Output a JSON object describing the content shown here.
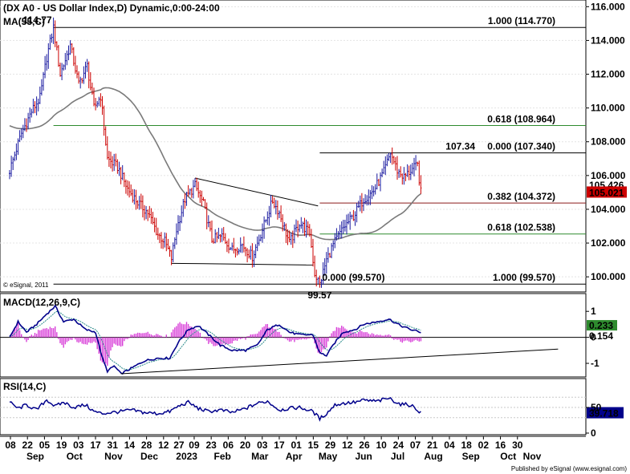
{
  "chart_data": {
    "type": "candlestick",
    "title": "(DX A0 - US Dollar Index,D) Dynamic,0:00-24:00",
    "copyright": "© eSignal, 2011",
    "publisher": "Published by eSignal (www.esignal.com)",
    "colors": {
      "up": "#1a1aa0",
      "down": "#cc0000",
      "ma": "#7a7a7a",
      "fib_green": "#2e8b2e",
      "macd": "#00008b",
      "signal": "#2a8a8a",
      "hist": "#d840d8",
      "rsi": "#00008b",
      "price_box": "#cc0000",
      "macd_box": "#2e8b2e",
      "rsi_box": "#00008b"
    },
    "price_panel": {
      "ylim": [
        99.2,
        116.3
      ],
      "yticks": [
        "100.000",
        "102.000",
        "104.000",
        "106.000",
        "108.000",
        "110.000",
        "112.000",
        "114.000",
        "116.000"
      ],
      "ma_label": "MA(55,C)",
      "last_price": "105.021",
      "last_price_behind": "105.426",
      "anchors": [
        {
          "x": 0,
          "y": 106.3
        },
        {
          "x": 7,
          "y": 108.5
        },
        {
          "x": 13,
          "y": 109.8
        },
        {
          "x": 18,
          "y": 110.6
        },
        {
          "x": 22,
          "y": 113.0
        },
        {
          "x": 26,
          "y": 114.77
        },
        {
          "x": 30,
          "y": 112.0
        },
        {
          "x": 36,
          "y": 113.7
        },
        {
          "x": 41,
          "y": 111.4
        },
        {
          "x": 46,
          "y": 112.5
        },
        {
          "x": 50,
          "y": 110.0
        },
        {
          "x": 54,
          "y": 110.7
        },
        {
          "x": 58,
          "y": 107.0
        },
        {
          "x": 64,
          "y": 106.5
        },
        {
          "x": 70,
          "y": 105.2
        },
        {
          "x": 76,
          "y": 104.4
        },
        {
          "x": 82,
          "y": 103.8
        },
        {
          "x": 88,
          "y": 102.5
        },
        {
          "x": 92,
          "y": 102.1
        },
        {
          "x": 96,
          "y": 101.1
        },
        {
          "x": 99,
          "y": 102.8
        },
        {
          "x": 104,
          "y": 104.6
        },
        {
          "x": 110,
          "y": 105.4
        },
        {
          "x": 115,
          "y": 104.3
        },
        {
          "x": 120,
          "y": 102.2
        },
        {
          "x": 126,
          "y": 102.4
        },
        {
          "x": 132,
          "y": 101.6
        },
        {
          "x": 138,
          "y": 101.9
        },
        {
          "x": 144,
          "y": 101.2
        },
        {
          "x": 150,
          "y": 102.8
        },
        {
          "x": 156,
          "y": 104.5
        },
        {
          "x": 160,
          "y": 103.8
        },
        {
          "x": 166,
          "y": 102.0
        },
        {
          "x": 172,
          "y": 103.2
        },
        {
          "x": 178,
          "y": 102.6
        },
        {
          "x": 181,
          "y": 100.2
        },
        {
          "x": 184,
          "y": 99.57
        },
        {
          "x": 188,
          "y": 101.0
        },
        {
          "x": 192,
          "y": 101.9
        },
        {
          "x": 198,
          "y": 102.9
        },
        {
          "x": 204,
          "y": 103.6
        },
        {
          "x": 210,
          "y": 104.6
        },
        {
          "x": 216,
          "y": 105.1
        },
        {
          "x": 222,
          "y": 106.2
        },
        {
          "x": 226,
          "y": 107.34
        },
        {
          "x": 230,
          "y": 106.3
        },
        {
          "x": 234,
          "y": 105.9
        },
        {
          "x": 238,
          "y": 106.3
        },
        {
          "x": 242,
          "y": 106.6
        },
        {
          "x": 244,
          "y": 105.0
        }
      ],
      "fib_levels": [
        {
          "value": 114.77,
          "label": "1.000 (114.770)",
          "color": "black",
          "from": 26
        },
        {
          "value": 108.964,
          "label": "0.618 (108.964)",
          "color": "green",
          "from": 26
        },
        {
          "value": 107.34,
          "label": "0.000 (107.340)",
          "color": "black",
          "from": 184
        },
        {
          "value": 104.372,
          "label": "0.382 (104.372)",
          "color": "darkred",
          "from": 184
        },
        {
          "value": 102.538,
          "label": "0.618 (102.538)",
          "color": "green",
          "from": 184
        },
        {
          "value": 99.57,
          "label": "1.000 (99.570)",
          "color": "black",
          "from": 26
        }
      ],
      "fib_aux_labels": [
        {
          "x": 26,
          "y": 114.77,
          "text": "114.77"
        },
        {
          "x": 184,
          "y": 99.57,
          "text": "99.57"
        },
        {
          "x": 184,
          "y": 99.57,
          "text": "0.000 (99.570)"
        },
        {
          "x": 213,
          "y": 107.34,
          "text": "107.34"
        }
      ],
      "trendlines": [
        {
          "x1": 110,
          "y1": 105.85,
          "x2": 183,
          "y2": 104.2
        },
        {
          "x1": 96,
          "y1": 100.8,
          "x2": 180,
          "y2": 100.7
        }
      ]
    },
    "macd_panel": {
      "label": "MACD(12,26,9,C)",
      "ylim": [
        -1.4,
        1.5
      ],
      "yticks": [
        "1",
        "0",
        "-1"
      ],
      "macd_value": "0.233",
      "signal_value": "0.154",
      "macd_anchors": [
        {
          "x": 0,
          "y": 0.0
        },
        {
          "x": 5,
          "y": 0.6
        },
        {
          "x": 10,
          "y": 0.2
        },
        {
          "x": 16,
          "y": 0.5
        },
        {
          "x": 22,
          "y": 0.9
        },
        {
          "x": 27,
          "y": 1.2
        },
        {
          "x": 32,
          "y": 0.6
        },
        {
          "x": 38,
          "y": 0.7
        },
        {
          "x": 45,
          "y": 0.3
        },
        {
          "x": 51,
          "y": 0.2
        },
        {
          "x": 55,
          "y": -0.8
        },
        {
          "x": 58,
          "y": -1.3
        },
        {
          "x": 62,
          "y": -1.1
        },
        {
          "x": 66,
          "y": -1.4
        },
        {
          "x": 72,
          "y": -1.2
        },
        {
          "x": 80,
          "y": -0.9
        },
        {
          "x": 88,
          "y": -0.8
        },
        {
          "x": 95,
          "y": -0.8
        },
        {
          "x": 100,
          "y": -0.2
        },
        {
          "x": 106,
          "y": 0.3
        },
        {
          "x": 112,
          "y": 0.45
        },
        {
          "x": 118,
          "y": 0.1
        },
        {
          "x": 125,
          "y": -0.3
        },
        {
          "x": 132,
          "y": -0.5
        },
        {
          "x": 140,
          "y": -0.5
        },
        {
          "x": 147,
          "y": -0.3
        },
        {
          "x": 153,
          "y": 0.3
        },
        {
          "x": 160,
          "y": 0.5
        },
        {
          "x": 166,
          "y": 0.2
        },
        {
          "x": 172,
          "y": 0.1
        },
        {
          "x": 180,
          "y": 0.1
        },
        {
          "x": 184,
          "y": -0.6
        },
        {
          "x": 188,
          "y": -0.7
        },
        {
          "x": 193,
          "y": -0.2
        },
        {
          "x": 198,
          "y": 0.2
        },
        {
          "x": 205,
          "y": 0.3
        },
        {
          "x": 210,
          "y": 0.5
        },
        {
          "x": 218,
          "y": 0.6
        },
        {
          "x": 225,
          "y": 0.7
        },
        {
          "x": 232,
          "y": 0.45
        },
        {
          "x": 238,
          "y": 0.3
        },
        {
          "x": 244,
          "y": 0.2
        }
      ],
      "trendline": {
        "x1": 66,
        "y1": -1.4,
        "x2": 254,
        "y2": -0.45
      }
    },
    "rsi_panel": {
      "label": "RSI(14,C)",
      "ylim": [
        0,
        100
      ],
      "yticks": [
        "50",
        "0"
      ],
      "rsi_value": "39.718",
      "anchors": [
        {
          "x": 0,
          "y": 60
        },
        {
          "x": 5,
          "y": 48
        },
        {
          "x": 10,
          "y": 55
        },
        {
          "x": 16,
          "y": 45
        },
        {
          "x": 22,
          "y": 65
        },
        {
          "x": 27,
          "y": 52
        },
        {
          "x": 32,
          "y": 60
        },
        {
          "x": 38,
          "y": 50
        },
        {
          "x": 45,
          "y": 55
        },
        {
          "x": 50,
          "y": 42
        },
        {
          "x": 55,
          "y": 38
        },
        {
          "x": 60,
          "y": 40
        },
        {
          "x": 66,
          "y": 42
        },
        {
          "x": 72,
          "y": 45
        },
        {
          "x": 80,
          "y": 40
        },
        {
          "x": 88,
          "y": 38
        },
        {
          "x": 95,
          "y": 42
        },
        {
          "x": 100,
          "y": 52
        },
        {
          "x": 106,
          "y": 60
        },
        {
          "x": 112,
          "y": 48
        },
        {
          "x": 118,
          "y": 42
        },
        {
          "x": 125,
          "y": 45
        },
        {
          "x": 132,
          "y": 40
        },
        {
          "x": 140,
          "y": 48
        },
        {
          "x": 147,
          "y": 58
        },
        {
          "x": 153,
          "y": 62
        },
        {
          "x": 160,
          "y": 45
        },
        {
          "x": 166,
          "y": 48
        },
        {
          "x": 172,
          "y": 50
        },
        {
          "x": 180,
          "y": 42
        },
        {
          "x": 184,
          "y": 28
        },
        {
          "x": 188,
          "y": 38
        },
        {
          "x": 193,
          "y": 55
        },
        {
          "x": 198,
          "y": 58
        },
        {
          "x": 205,
          "y": 60
        },
        {
          "x": 210,
          "y": 64
        },
        {
          "x": 218,
          "y": 62
        },
        {
          "x": 225,
          "y": 68
        },
        {
          "x": 232,
          "y": 56
        },
        {
          "x": 238,
          "y": 55
        },
        {
          "x": 244,
          "y": 40
        }
      ]
    },
    "x_axis": {
      "day_ticks": [
        {
          "x": 0,
          "label": "08"
        },
        {
          "x": 10,
          "label": "22"
        },
        {
          "x": 20,
          "label": "05"
        },
        {
          "x": 30,
          "label": "19"
        },
        {
          "x": 40,
          "label": "03"
        },
        {
          "x": 50,
          "label": "17"
        },
        {
          "x": 60,
          "label": "31"
        },
        {
          "x": 70,
          "label": "14"
        },
        {
          "x": 80,
          "label": "28"
        },
        {
          "x": 90,
          "label": "12"
        },
        {
          "x": 99,
          "label": "27"
        },
        {
          "x": 108,
          "label": "09"
        },
        {
          "x": 118,
          "label": "23"
        },
        {
          "x": 128,
          "label": "06"
        },
        {
          "x": 138,
          "label": "20"
        },
        {
          "x": 148,
          "label": "03"
        },
        {
          "x": 158,
          "label": "17"
        },
        {
          "x": 168,
          "label": "01"
        },
        {
          "x": 178,
          "label": "15"
        },
        {
          "x": 188,
          "label": "29"
        },
        {
          "x": 198,
          "label": "12"
        },
        {
          "x": 208,
          "label": "26"
        },
        {
          "x": 218,
          "label": "10"
        },
        {
          "x": 228,
          "label": "24"
        },
        {
          "x": 238,
          "label": "07"
        },
        {
          "x": 248,
          "label": "21"
        },
        {
          "x": 258,
          "label": "04"
        },
        {
          "x": 268,
          "label": "18"
        },
        {
          "x": 278,
          "label": "02"
        },
        {
          "x": 288,
          "label": "16"
        },
        {
          "x": 298,
          "label": "30"
        }
      ],
      "month_ticks": [
        {
          "x": 8,
          "label": "Sep"
        },
        {
          "x": 31,
          "label": "Oct"
        },
        {
          "x": 54,
          "label": "Nov"
        },
        {
          "x": 75,
          "label": "Dec"
        },
        {
          "x": 97,
          "label": "2023"
        },
        {
          "x": 118,
          "label": "Feb"
        },
        {
          "x": 140,
          "label": "Mar"
        },
        {
          "x": 160,
          "label": "Apr"
        },
        {
          "x": 180,
          "label": "May"
        },
        {
          "x": 201,
          "label": "Jun"
        },
        {
          "x": 221,
          "label": "Jul"
        },
        {
          "x": 242,
          "label": "Aug"
        },
        {
          "x": 264,
          "label": "Sep"
        },
        {
          "x": 286,
          "label": "Oct"
        },
        {
          "x": 300,
          "label": "Nov"
        }
      ]
    }
  }
}
